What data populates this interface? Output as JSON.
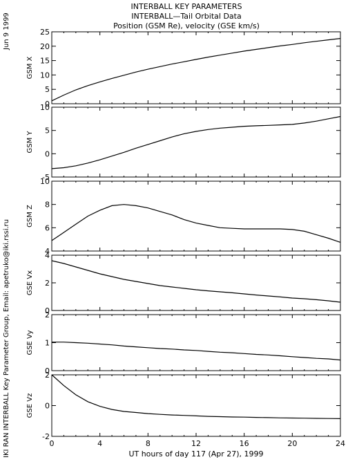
{
  "header": {
    "title": "INTERBALL KEY PARAMETERS",
    "subtitle": "INTERBALL—Tail Orbital Data",
    "units_line": "Position (GSM Re), velocity (GSE km/s)"
  },
  "side_text": {
    "date": "Jun  9 1999",
    "credit": "IKI RAN INTERBALL Key Parameter Group, Email: apetruko@iki.rssi.ru"
  },
  "chart_data": {
    "type": "line",
    "xlabel": "UT hours of day 117 (Apr 27), 1999",
    "xlim": [
      0,
      24
    ],
    "xticks": [
      0,
      4,
      8,
      12,
      16,
      20,
      24
    ],
    "x": [
      0,
      1,
      2,
      3,
      4,
      5,
      6,
      7,
      8,
      9,
      10,
      11,
      12,
      13,
      14,
      15,
      16,
      17,
      18,
      19,
      20,
      21,
      22,
      23,
      24
    ],
    "panels": [
      {
        "name": "gsm-x",
        "ylabel": "GSM X",
        "ylim": [
          0,
          25
        ],
        "yticks": [
          0,
          5,
          10,
          15,
          20,
          25
        ],
        "values": [
          1.0,
          3.0,
          4.8,
          6.3,
          7.6,
          8.8,
          9.9,
          11.0,
          12.0,
          12.9,
          13.8,
          14.6,
          15.4,
          16.2,
          16.9,
          17.6,
          18.3,
          18.9,
          19.5,
          20.1,
          20.6,
          21.2,
          21.7,
          22.2,
          22.7
        ]
      },
      {
        "name": "gsm-y",
        "ylabel": "GSM Y",
        "ylim": [
          -5,
          10
        ],
        "yticks": [
          -5,
          0,
          5,
          10
        ],
        "values": [
          -3.2,
          -3.0,
          -2.6,
          -2.0,
          -1.3,
          -0.5,
          0.3,
          1.2,
          2.0,
          2.8,
          3.6,
          4.3,
          4.8,
          5.2,
          5.5,
          5.7,
          5.9,
          6.0,
          6.1,
          6.2,
          6.3,
          6.6,
          7.0,
          7.5,
          8.0
        ]
      },
      {
        "name": "gsm-z",
        "ylabel": "GSM Z",
        "ylim": [
          4,
          10
        ],
        "yticks": [
          4,
          6,
          8,
          10
        ],
        "values": [
          4.9,
          5.6,
          6.3,
          7.0,
          7.5,
          7.9,
          8.0,
          7.9,
          7.7,
          7.4,
          7.1,
          6.7,
          6.4,
          6.2,
          6.0,
          5.95,
          5.9,
          5.9,
          5.9,
          5.9,
          5.85,
          5.7,
          5.4,
          5.1,
          4.75
        ]
      },
      {
        "name": "gse-vx",
        "ylabel": "GSE Vx",
        "ylim": [
          0,
          4
        ],
        "yticks": [
          0,
          2,
          4
        ],
        "values": [
          3.6,
          3.4,
          3.15,
          2.9,
          2.65,
          2.45,
          2.25,
          2.1,
          1.95,
          1.8,
          1.7,
          1.6,
          1.5,
          1.42,
          1.35,
          1.28,
          1.2,
          1.12,
          1.05,
          0.98,
          0.9,
          0.85,
          0.78,
          0.7,
          0.6
        ]
      },
      {
        "name": "gse-vy",
        "ylabel": "GSE Vy",
        "ylim": [
          0,
          2
        ],
        "yticks": [
          0,
          1,
          2
        ],
        "values": [
          1.02,
          1.02,
          1.0,
          0.98,
          0.95,
          0.92,
          0.88,
          0.85,
          0.82,
          0.79,
          0.77,
          0.74,
          0.72,
          0.69,
          0.66,
          0.64,
          0.61,
          0.58,
          0.56,
          0.53,
          0.5,
          0.47,
          0.44,
          0.42,
          0.38
        ]
      },
      {
        "name": "gse-vz",
        "ylabel": "GSE Vz",
        "ylim": [
          -2,
          2
        ],
        "yticks": [
          -2,
          0,
          2
        ],
        "values": [
          2.0,
          1.3,
          0.7,
          0.25,
          -0.05,
          -0.25,
          -0.38,
          -0.45,
          -0.52,
          -0.57,
          -0.61,
          -0.64,
          -0.67,
          -0.7,
          -0.72,
          -0.74,
          -0.75,
          -0.77,
          -0.78,
          -0.8,
          -0.81,
          -0.82,
          -0.83,
          -0.84,
          -0.85
        ]
      }
    ]
  }
}
